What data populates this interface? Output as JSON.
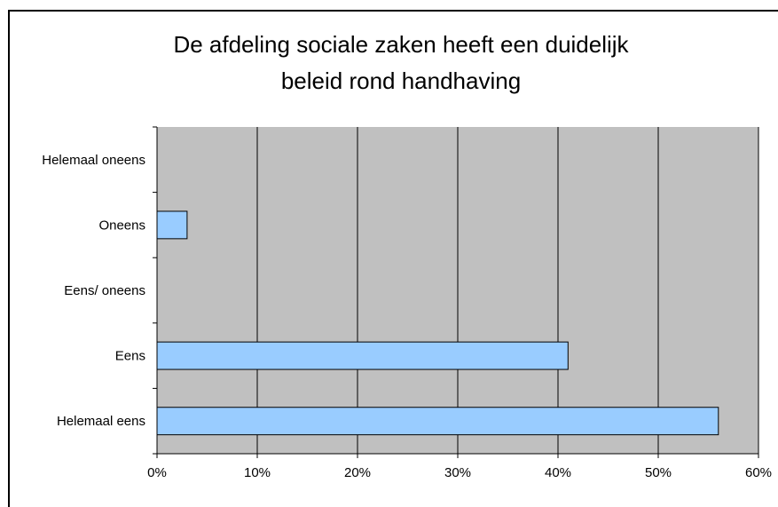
{
  "chart_data": {
    "type": "bar",
    "orientation": "horizontal",
    "title": "De afdeling sociale zaken heeft een duidelijk beleid rond handhaving",
    "title_lines": [
      "De afdeling sociale zaken heeft een duidelijk",
      "beleid rond handhaving"
    ],
    "categories": [
      "Helemaal oneens",
      "Oneens",
      "Eens/ oneens",
      "Eens",
      "Helemaal eens"
    ],
    "values": [
      0,
      0.03,
      0,
      0.41,
      0.56
    ],
    "x_ticks": [
      "0%",
      "10%",
      "20%",
      "30%",
      "40%",
      "50%",
      "60%"
    ],
    "xlim": [
      0,
      0.6
    ],
    "xlabel": "",
    "ylabel": "",
    "grid": "vertical",
    "legend": "none",
    "colors": {
      "bar_fill": "#99ccff",
      "bar_stroke": "#000000",
      "plot_background": "#c0c0c0",
      "gridline": "#000000"
    }
  }
}
